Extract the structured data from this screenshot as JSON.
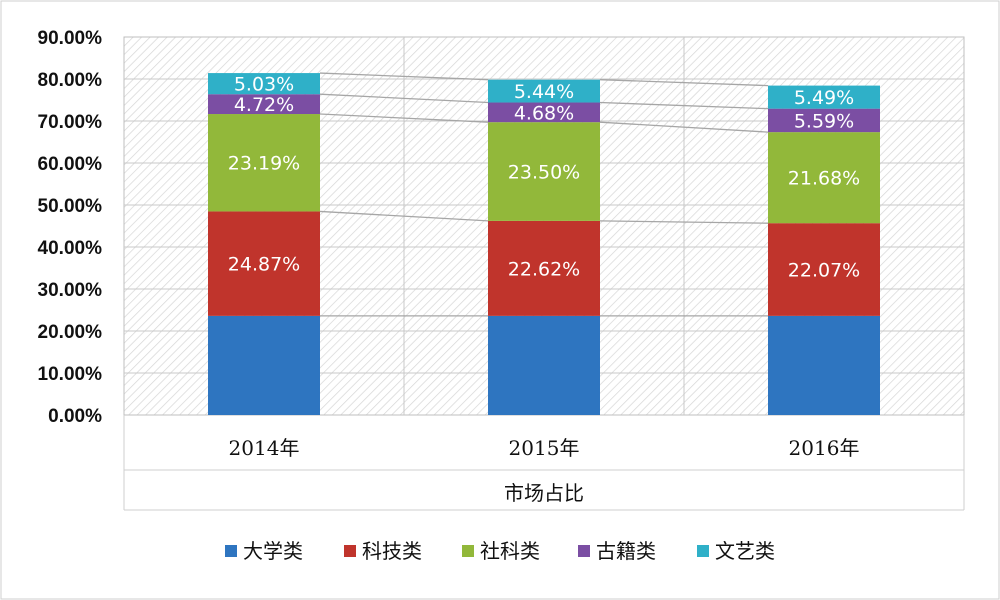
{
  "chart_data": {
    "type": "bar",
    "stacked": true,
    "categories": [
      "2014年",
      "2015年",
      "2016年"
    ],
    "xlabel": "市场占比",
    "ylabel": "",
    "ylim": [
      0,
      90
    ],
    "yticks": [
      "0.00%",
      "10.00%",
      "20.00%",
      "30.00%",
      "40.00%",
      "50.00%",
      "60.00%",
      "70.00%",
      "80.00%",
      "90.00%"
    ],
    "grid": true,
    "legend_position": "bottom",
    "series": [
      {
        "name": "大学类",
        "color": "#2e75c0",
        "values": [
          23.6,
          23.6,
          23.6
        ],
        "labels": [
          "",
          "",
          ""
        ]
      },
      {
        "name": "科技类",
        "color": "#c0342c",
        "values": [
          24.87,
          22.62,
          22.07
        ],
        "labels": [
          "24.87%",
          "22.62%",
          "22.07%"
        ]
      },
      {
        "name": "社科类",
        "color": "#92b83a",
        "values": [
          23.19,
          23.5,
          21.68
        ],
        "labels": [
          "23.19%",
          "23.50%",
          "21.68%"
        ]
      },
      {
        "name": "古籍类",
        "color": "#7b4ea3",
        "values": [
          4.72,
          4.68,
          5.59
        ],
        "labels": [
          "4.72%",
          "4.68%",
          "5.59%"
        ]
      },
      {
        "name": "文艺类",
        "color": "#2fb0c8",
        "values": [
          5.03,
          5.44,
          5.49
        ],
        "labels": [
          "5.03%",
          "5.44%",
          "5.49%"
        ]
      }
    ]
  }
}
